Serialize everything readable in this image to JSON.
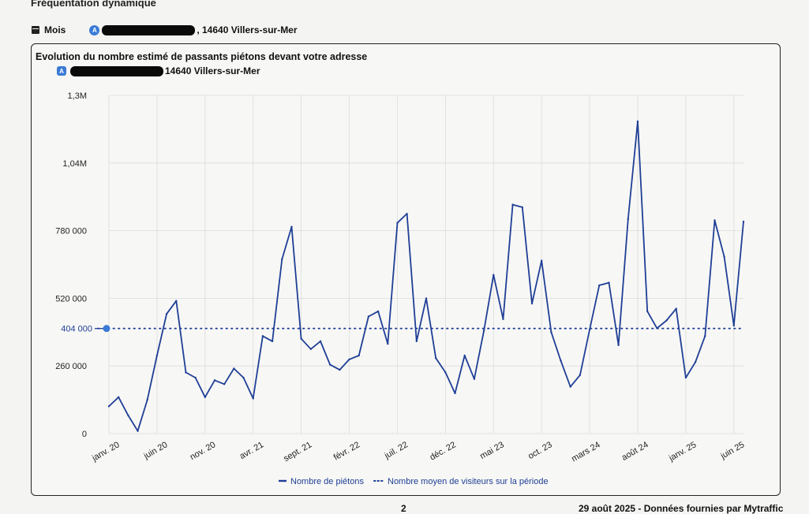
{
  "page": {
    "title": "Fréquentation dynamique",
    "period": "Mois",
    "address_badge": "A",
    "address_suffix": ", 14640 Villers-sur-Mer",
    "page_number": "2",
    "source": "29 août 2025 - Données fournies par Mytraffic"
  },
  "card": {
    "address_suffix": "14640 Villers-sur-Mer"
  },
  "colors": {
    "line": "#1f3f96",
    "grid": "#dcdcdc",
    "text": "#222222",
    "badge": "#3b7bd6"
  },
  "chart_data": {
    "type": "line",
    "title": "Evolution du nombre estimé de passants piétons devant votre adresse",
    "ylim": [
      0,
      1300000
    ],
    "y_ticks": [
      {
        "value": 0,
        "label": "0"
      },
      {
        "value": 260000,
        "label": "260 000"
      },
      {
        "value": 520000,
        "label": "520 000"
      },
      {
        "value": 780000,
        "label": "780 000"
      },
      {
        "value": 1040000,
        "label": "1,04M"
      },
      {
        "value": 1300000,
        "label": "1,3M"
      }
    ],
    "x_tick_labels": [
      {
        "index": 0,
        "label": "janv. 20"
      },
      {
        "index": 5,
        "label": "juin 20"
      },
      {
        "index": 10,
        "label": "nov. 20"
      },
      {
        "index": 15,
        "label": "avr. 21"
      },
      {
        "index": 20,
        "label": "sept. 21"
      },
      {
        "index": 25,
        "label": "févr. 22"
      },
      {
        "index": 30,
        "label": "juil. 22"
      },
      {
        "index": 35,
        "label": "déc. 22"
      },
      {
        "index": 40,
        "label": "mai 23"
      },
      {
        "index": 45,
        "label": "oct. 23"
      },
      {
        "index": 50,
        "label": "mars 24"
      },
      {
        "index": 55,
        "label": "août 24"
      },
      {
        "index": 60,
        "label": "janv. 25"
      },
      {
        "index": 65,
        "label": "juin 25"
      }
    ],
    "series": [
      {
        "name": "Nombre de piétons",
        "style": "solid",
        "values": [
          105000,
          140000,
          70000,
          10000,
          130000,
          300000,
          460000,
          510000,
          235000,
          215000,
          140000,
          205000,
          190000,
          250000,
          215000,
          135000,
          375000,
          355000,
          670000,
          795000,
          365000,
          325000,
          355000,
          265000,
          245000,
          285000,
          300000,
          450000,
          470000,
          345000,
          810000,
          845000,
          355000,
          520000,
          290000,
          235000,
          155000,
          300000,
          210000,
          395000,
          610000,
          440000,
          880000,
          870000,
          500000,
          665000,
          390000,
          280000,
          180000,
          225000,
          400000,
          570000,
          580000,
          340000,
          825000,
          1200000,
          470000,
          405000,
          435000,
          480000,
          215000,
          275000,
          375000,
          820000,
          680000,
          415000,
          815000
        ]
      },
      {
        "name": "Nombre moyen de visiteurs sur la période",
        "style": "dotted",
        "value": 404000,
        "label": "404 000"
      }
    ],
    "legend_position": "bottom-center",
    "grid": true
  }
}
